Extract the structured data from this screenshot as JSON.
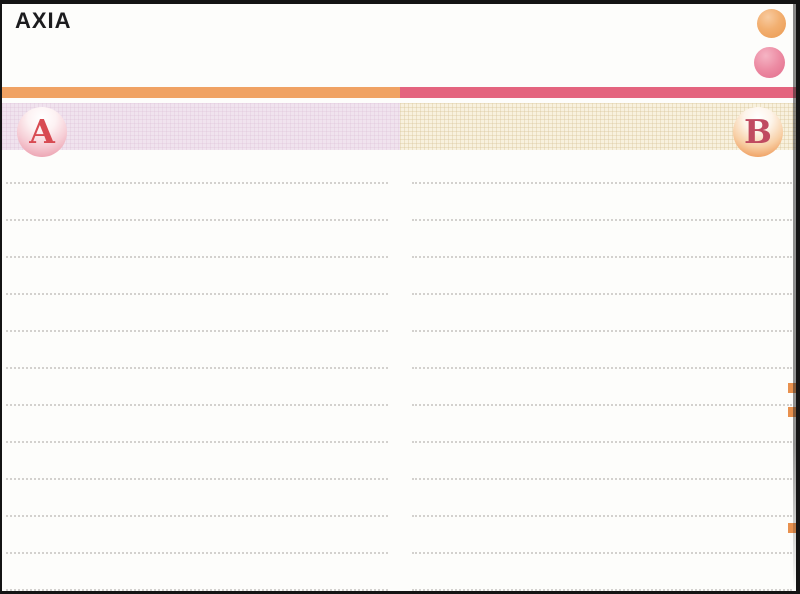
{
  "page": {
    "brand": "AXIA",
    "paper_color": "#fdfdfb",
    "frame_color": "#141414"
  },
  "decor_dots": [
    {
      "name": "orange-dot",
      "color": "#eda05c"
    },
    {
      "name": "pink-dot",
      "color": "#e5718e"
    }
  ],
  "header": {
    "left": {
      "letter": "A",
      "bar_color": "#f0a263",
      "band_color": "#f0e3ee",
      "letter_color": "#d84a52"
    },
    "right": {
      "letter": "B",
      "bar_color": "#e4647e",
      "band_color": "#f8f1de",
      "letter_color": "#c04a60"
    }
  },
  "ruled_lines": {
    "columns": 2,
    "lines_per_column": 12,
    "spacing_px": 37,
    "color": "#98938f"
  },
  "right_edge_tabs": {
    "count": 3,
    "color": "#e8914e",
    "y_positions": [
      379,
      403,
      519
    ]
  }
}
